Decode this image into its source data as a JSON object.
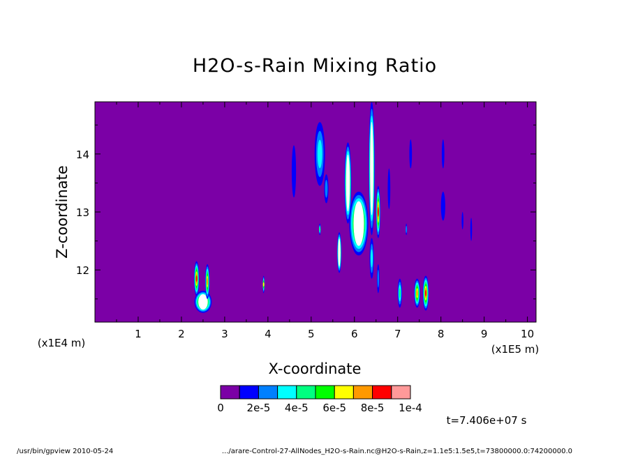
{
  "chart_data": {
    "type": "heatmap",
    "title": "H2O-s-Rain Mixing Ratio",
    "xlabel": "X-coordinate",
    "ylabel": "Z-coordinate",
    "x_scale_label": "(x1E5 m)",
    "y_scale_label": "(x1E4 m)",
    "x_ticks": [
      "1",
      "2",
      "3",
      "4",
      "5",
      "6",
      "7",
      "8",
      "9",
      "10"
    ],
    "y_ticks": [
      "12",
      "13",
      "14"
    ],
    "xlim": [
      0,
      10.2
    ],
    "ylim": [
      11.1,
      14.9
    ],
    "time_label": "t=7.406e+07 s",
    "background_color": "#7b00a6",
    "colorbar": {
      "labels": [
        "0",
        "2e-5",
        "4e-5",
        "6e-5",
        "8e-5",
        "1e-4"
      ],
      "colors": [
        "#7b00a6",
        "#0000ff",
        "#0080ff",
        "#00ffff",
        "#00ff80",
        "#00ff00",
        "#ffff00",
        "#ff9900",
        "#ff0000",
        "#ff9999"
      ]
    },
    "features": [
      {
        "x": 2.5,
        "z": 11.45,
        "rx": 0.2,
        "rz": 0.19,
        "level": 10
      },
      {
        "x": 2.35,
        "z": 11.85,
        "rx": 0.06,
        "rz": 0.3,
        "level": 8
      },
      {
        "x": 2.6,
        "z": 11.8,
        "rx": 0.05,
        "rz": 0.3,
        "level": 7
      },
      {
        "x": 3.9,
        "z": 11.75,
        "rx": 0.02,
        "rz": 0.15,
        "level": 6
      },
      {
        "x": 4.6,
        "z": 13.7,
        "rx": 0.05,
        "rz": 0.45,
        "level": 1
      },
      {
        "x": 5.2,
        "z": 14.0,
        "rx": 0.12,
        "rz": 0.55,
        "level": 3
      },
      {
        "x": 5.35,
        "z": 13.4,
        "rx": 0.05,
        "rz": 0.25,
        "level": 2
      },
      {
        "x": 5.2,
        "z": 12.7,
        "rx": 0.02,
        "rz": 0.1,
        "level": 4
      },
      {
        "x": 5.65,
        "z": 12.3,
        "rx": 0.05,
        "rz": 0.35,
        "level": 9
      },
      {
        "x": 5.85,
        "z": 13.5,
        "rx": 0.08,
        "rz": 0.7,
        "level": 9
      },
      {
        "x": 6.1,
        "z": 12.8,
        "rx": 0.22,
        "rz": 0.55,
        "level": 10
      },
      {
        "x": 6.4,
        "z": 13.75,
        "rx": 0.07,
        "rz": 1.15,
        "level": 10
      },
      {
        "x": 6.55,
        "z": 13.0,
        "rx": 0.05,
        "rz": 0.45,
        "level": 8
      },
      {
        "x": 6.4,
        "z": 12.2,
        "rx": 0.05,
        "rz": 0.35,
        "level": 3
      },
      {
        "x": 6.55,
        "z": 11.85,
        "rx": 0.03,
        "rz": 0.25,
        "level": 2
      },
      {
        "x": 6.8,
        "z": 13.4,
        "rx": 0.03,
        "rz": 0.35,
        "level": 1
      },
      {
        "x": 7.05,
        "z": 11.6,
        "rx": 0.05,
        "rz": 0.25,
        "level": 4
      },
      {
        "x": 7.3,
        "z": 14.0,
        "rx": 0.03,
        "rz": 0.25,
        "level": 1
      },
      {
        "x": 7.2,
        "z": 12.7,
        "rx": 0.01,
        "rz": 0.1,
        "level": 2
      },
      {
        "x": 7.45,
        "z": 11.6,
        "rx": 0.07,
        "rz": 0.25,
        "level": 7
      },
      {
        "x": 7.65,
        "z": 11.6,
        "rx": 0.07,
        "rz": 0.3,
        "level": 8
      },
      {
        "x": 8.05,
        "z": 14.0,
        "rx": 0.03,
        "rz": 0.25,
        "level": 1
      },
      {
        "x": 8.05,
        "z": 13.1,
        "rx": 0.05,
        "rz": 0.25,
        "level": 1
      },
      {
        "x": 8.5,
        "z": 12.85,
        "rx": 0.02,
        "rz": 0.15,
        "level": 1
      },
      {
        "x": 8.7,
        "z": 12.7,
        "rx": 0.02,
        "rz": 0.2,
        "level": 1
      }
    ]
  },
  "footer": {
    "left": "/usr/bin/gpview   2010-05-24",
    "right": ".../arare-Control-27-AllNodes_H2O-s-Rain.nc@H2O-s-Rain,z=1.1e5:1.5e5,t=73800000.0:74200000.0"
  }
}
